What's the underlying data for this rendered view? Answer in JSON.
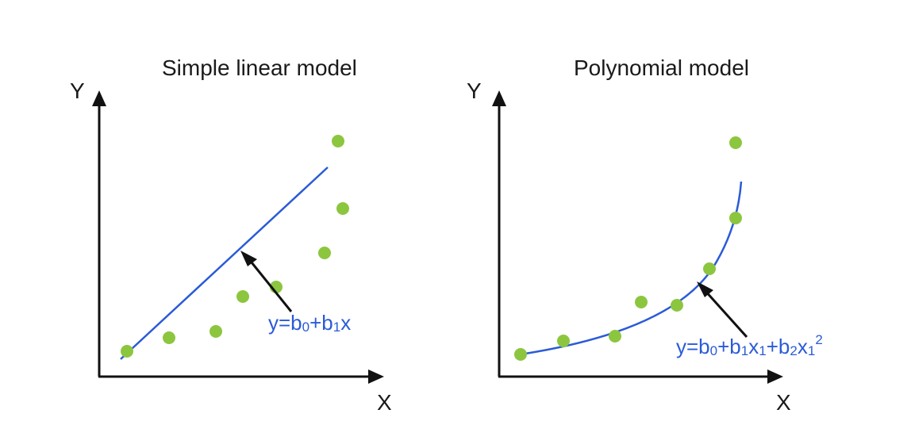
{
  "colors": {
    "axis": "#111111",
    "fit_line": "#2a5bd7",
    "point": "#8cc63f",
    "text": "#1a1a1a",
    "equation": "#2a5bd7"
  },
  "panels": [
    {
      "title": "Simple linear model",
      "y_label": "Y",
      "x_label": "X",
      "equation": {
        "y": "y=b",
        "s0": "0",
        "plus1": "+b",
        "s1": "1",
        "x": "x"
      }
    },
    {
      "title": "Polynomial model",
      "y_label": "Y",
      "x_label": "X",
      "equation": {
        "y": "y=b",
        "s0": "0",
        "plus1": "+b",
        "s1": "1",
        "x1": "x",
        "s1b": "1",
        "plus2": "+b",
        "s2": "2",
        "x2": "x",
        "s1c": "1",
        "sup": "2"
      }
    }
  ]
}
